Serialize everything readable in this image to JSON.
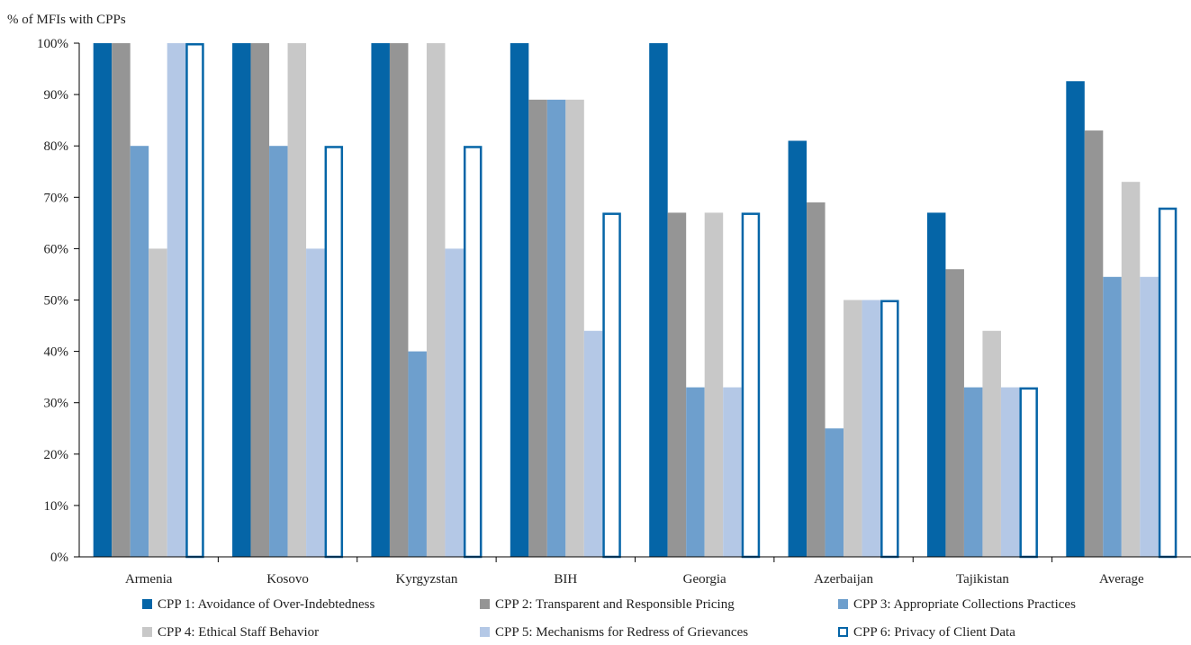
{
  "chart_data": {
    "type": "bar",
    "title": "",
    "xlabel": "",
    "ylabel": "% of MFIs with CPPs",
    "ylim": [
      0,
      100
    ],
    "ytick_step": 10,
    "ytick_labels": [
      "0%",
      "10%",
      "20%",
      "30%",
      "40%",
      "50%",
      "60%",
      "70%",
      "80%",
      "90%",
      "100%"
    ],
    "grid": false,
    "legend_position": "bottom",
    "categories": [
      "Armenia",
      "Kosovo",
      "Kyrgyzstan",
      "BIH",
      "Georgia",
      "Azerbaijan",
      "Tajikistan",
      "Average"
    ],
    "series": [
      {
        "name": "CPP 1: Avoidance of Over-Indebtedness",
        "color": "#0565a7",
        "style": "filled",
        "values": [
          100,
          100,
          100,
          100,
          100,
          81,
          67,
          92.6
        ]
      },
      {
        "name": "CPP 2: Transparent and Responsible Pricing",
        "color": "#959595",
        "style": "filled",
        "values": [
          100,
          100,
          100,
          89,
          67,
          69,
          56,
          83
        ]
      },
      {
        "name": "CPP 3: Appropriate Collections Practices",
        "color": "#6e9fcd",
        "style": "filled",
        "values": [
          80,
          80,
          40,
          89,
          33,
          25,
          33,
          54.5
        ]
      },
      {
        "name": "CPP 4: Ethical Staff Behavior",
        "color": "#c8c8c8",
        "style": "filled",
        "values": [
          60,
          100,
          100,
          89,
          67,
          50,
          44,
          73
        ]
      },
      {
        "name": "CPP 5: Mechanisms for Redress of Grievances",
        "color": "#b4c8e6",
        "style": "filled",
        "values": [
          100,
          60,
          60,
          44,
          33,
          50,
          33,
          54.5
        ]
      },
      {
        "name": "CPP 6: Privacy of Client Data",
        "color": "#0565a7",
        "style": "outline",
        "values": [
          100,
          80,
          80,
          67,
          67,
          50,
          33,
          68
        ]
      }
    ]
  }
}
